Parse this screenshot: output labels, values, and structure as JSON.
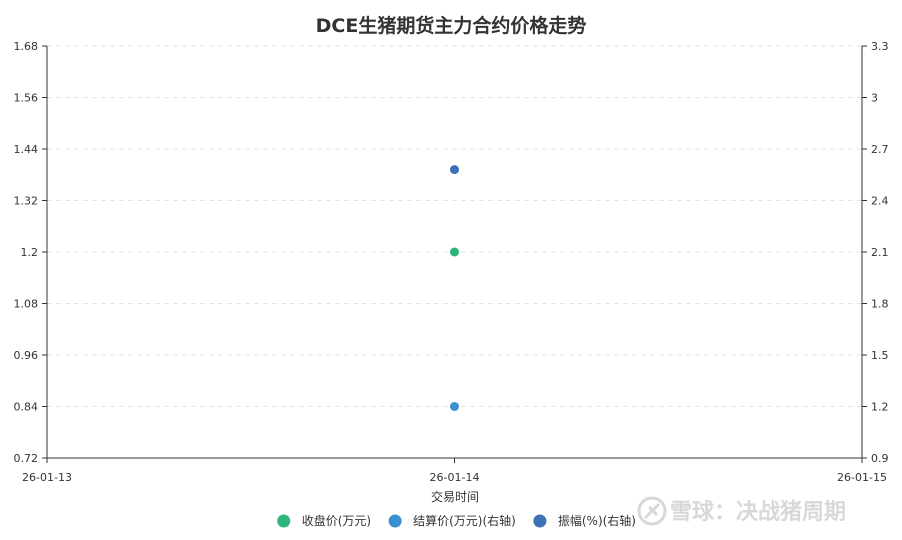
{
  "chart_data": {
    "type": "scatter",
    "title": "DCE生猪期货主力合约价格走势",
    "xlabel": "交易时间",
    "x_ticks": [
      "26-01-13",
      "26-01-14",
      "26-01-15"
    ],
    "y_left": {
      "min": 0.72,
      "max": 1.68,
      "ticks": [
        "0.72",
        "0.84",
        "0.96",
        "1.08",
        "1.2",
        "1.32",
        "1.44",
        "1.56",
        "1.68"
      ]
    },
    "y_right": {
      "min": 0.9,
      "max": 3.3,
      "ticks": [
        "0.9",
        "1.2",
        "1.5",
        "1.8",
        "2.1",
        "2.4",
        "2.7",
        "3",
        "3.3"
      ]
    },
    "grid": true,
    "legend_position": "bottom",
    "series": [
      {
        "name": "收盘价(万元)",
        "axis": "left",
        "color": "#2db57e",
        "points": [
          {
            "x": "26-01-14",
            "y": 1.2
          }
        ]
      },
      {
        "name": "结算价(万元)(右轴)",
        "axis": "right",
        "color": "#3a8fcf",
        "points": [
          {
            "x": "26-01-14",
            "y": 1.2
          }
        ]
      },
      {
        "name": "振幅(%)(右轴)",
        "axis": "right",
        "color": "#3f6fb5",
        "points": [
          {
            "x": "26-01-14",
            "y": 2.58
          }
        ]
      }
    ]
  },
  "watermark": {
    "text": "雪球：决战猪周期",
    "icon": "snowball-logo-icon"
  }
}
